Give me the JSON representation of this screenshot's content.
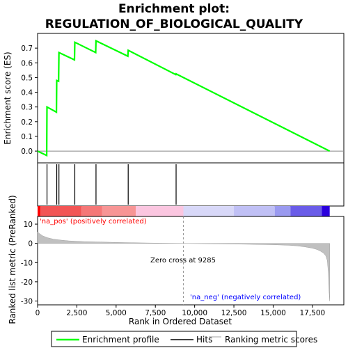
{
  "chart_data": {
    "type": "line",
    "title_line1": "Enrichment plot:",
    "title_line2": "REGULATION_OF_BIOLOGICAL_QUALITY",
    "es_panel": {
      "ylabel": "Enrichment score (ES)",
      "ylim": [
        -0.08,
        0.8
      ],
      "yticks": [
        0.0,
        0.1,
        0.2,
        0.3,
        0.4,
        0.5,
        0.6,
        0.7
      ],
      "ytick_labels": [
        "0.0",
        "0.1",
        "0.2",
        "0.3",
        "0.4",
        "0.5",
        "0.6",
        "0.7"
      ],
      "series": [
        {
          "name": "Enrichment profile",
          "color": "#00ff00",
          "x": [
            0,
            580,
            600,
            1200,
            1220,
            1340,
            1360,
            2350,
            2370,
            3700,
            3720,
            5750,
            5770,
            8800,
            8820,
            18600
          ],
          "y": [
            0.0,
            -0.03,
            0.3,
            0.265,
            0.48,
            0.475,
            0.67,
            0.62,
            0.74,
            0.67,
            0.75,
            0.645,
            0.685,
            0.52,
            0.525,
            0.0
          ]
        }
      ]
    },
    "hits": {
      "name": "Hits",
      "positions": [
        600,
        1220,
        1360,
        2370,
        3720,
        5770,
        8820
      ]
    },
    "ranking_panel": {
      "ylabel": "Ranked list metric (PreRanked)",
      "ylim": [
        -32,
        14
      ],
      "yticks": [
        10,
        0,
        -10,
        -20,
        -30
      ],
      "ytick_labels": [
        "10",
        "0",
        "-10",
        "-20",
        "-30"
      ],
      "series_name": "Ranking metric scores",
      "x": [
        0,
        100,
        300,
        600,
        1000,
        1500,
        2000,
        3000,
        4000,
        5000,
        6000,
        7000,
        8000,
        9285,
        10000,
        11000,
        12000,
        13000,
        14000,
        15000,
        16000,
        16500,
        17000,
        17500,
        17800,
        18000,
        18200,
        18350,
        18450,
        18520,
        18560,
        18600
      ],
      "y": [
        6.0,
        5.2,
        4.0,
        3.0,
        2.2,
        1.7,
        1.3,
        0.9,
        0.7,
        0.5,
        0.35,
        0.2,
        0.1,
        0.0,
        -0.1,
        -0.2,
        -0.3,
        -0.4,
        -0.55,
        -0.7,
        -1.0,
        -1.3,
        -1.8,
        -2.5,
        -3.2,
        -4.0,
        -5.0,
        -6.5,
        -9.0,
        -16.0,
        -25.0,
        -30.0
      ],
      "annotations": {
        "pos": "'na_pos' (positively correlated)",
        "neg": "'na_neg' (negatively correlated)",
        "zero_cross": "Zero cross at 9285",
        "pos_color": "#ff0000",
        "neg_color": "#0000ff"
      },
      "zero_cross": 9285
    },
    "xaxis": {
      "label": "Rank in Ordered Dataset",
      "xlim": [
        0,
        19500
      ],
      "ticks": [
        0,
        2500,
        5000,
        7500,
        10000,
        12500,
        15000,
        17500
      ],
      "tick_labels": [
        "0",
        "2,500",
        "5,000",
        "7,500",
        "10,000",
        "12,500",
        "15,000",
        "17,500"
      ]
    },
    "colorbar": {
      "segments": [
        {
          "start": 0,
          "end": 180,
          "color": "#ff0000"
        },
        {
          "start": 180,
          "end": 2800,
          "color": "#f25555"
        },
        {
          "start": 2800,
          "end": 4100,
          "color": "#f57777"
        },
        {
          "start": 4100,
          "end": 6250,
          "color": "#f79595"
        },
        {
          "start": 6250,
          "end": 9285,
          "color": "#fbc6e0"
        },
        {
          "start": 9285,
          "end": 12500,
          "color": "#d8d8f8"
        },
        {
          "start": 12500,
          "end": 15100,
          "color": "#c0c0f5"
        },
        {
          "start": 15100,
          "end": 16100,
          "color": "#9a9af0"
        },
        {
          "start": 16100,
          "end": 18100,
          "color": "#6a5ce8"
        },
        {
          "start": 18100,
          "end": 18600,
          "color": "#2b00dd"
        }
      ]
    },
    "legend": {
      "items": [
        {
          "label": "Enrichment profile",
          "color": "#00ff00"
        },
        {
          "label": "Hits",
          "color": "#000000"
        },
        {
          "label": "Ranking metric scores",
          "color": "#c0c0c0"
        }
      ]
    }
  }
}
